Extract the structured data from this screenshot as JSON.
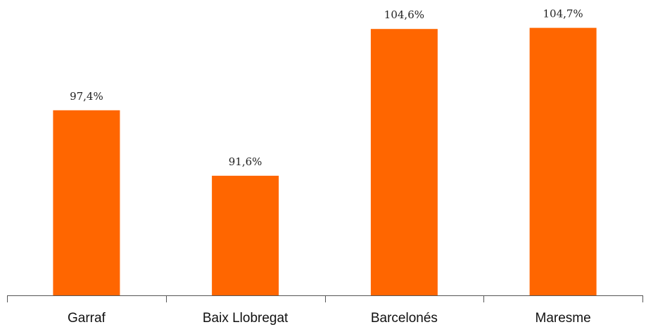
{
  "chart_data": {
    "type": "bar",
    "categories": [
      "Garraf",
      "Baix Llobregat",
      "Barcelonés",
      "Maresme"
    ],
    "values": [
      97.4,
      91.6,
      104.6,
      104.7
    ],
    "data_labels": [
      "97,4%",
      "91,6%",
      "104,6%",
      "104,7%"
    ],
    "title": "",
    "xlabel": "",
    "ylabel": "",
    "ylim": [
      81,
      105.3
    ],
    "grid": false,
    "legend": "none",
    "bar_color": "#FF6600"
  }
}
